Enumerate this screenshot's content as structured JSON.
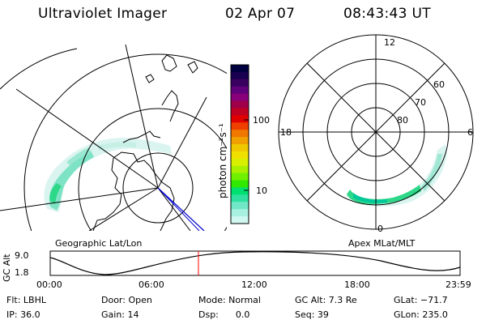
{
  "header": {
    "instrument": "Ultraviolet Imager",
    "date": "02 Apr 07",
    "time": "08:43:43 UT"
  },
  "colorbar": {
    "unit_label": "photon cm⁻²s⁻¹",
    "ticks": [
      "100",
      "10"
    ],
    "colors": [
      "#000040",
      "#1a0050",
      "#3a0060",
      "#60007a",
      "#88007a",
      "#a0004a",
      "#c00020",
      "#e00000",
      "#f04000",
      "#f07800",
      "#f0a000",
      "#f0c800",
      "#f0e000",
      "#d8f000",
      "#a8f000",
      "#70f000",
      "#30e800",
      "#00e070",
      "#30e0a0",
      "#70e8c8",
      "#a8f0e0",
      "#d0f8f0"
    ]
  },
  "geo_map": {
    "caption": "Geographic Lat/Lon"
  },
  "polar_map": {
    "caption": "Apex MLat/MLT",
    "mlt_labels": {
      "top": "12",
      "left": "18",
      "right": "6",
      "bottom": "0"
    },
    "lat_labels": [
      "60",
      "70",
      "80"
    ]
  },
  "timeline": {
    "ylabel": "GC Alt",
    "y_ticks": [
      "9.0",
      "1.8"
    ],
    "x_ticks": [
      "00:00",
      "06:00",
      "12:00",
      "18:00",
      "23:59"
    ],
    "marker_color": "#ff0000"
  },
  "info": {
    "row1": {
      "flt": "Flt: LBHL",
      "door": "Door: Open",
      "mode": "Mode: Normal",
      "gcalt": "GC Alt: 7.3 Re",
      "glat": "GLat: −71.7"
    },
    "row2": {
      "ip": "IP: 36.0",
      "gain": "Gain: 14",
      "dsp": "Dsp:      0.0",
      "seq": "Seq: 39",
      "glon": "GLon: 235.0"
    }
  }
}
